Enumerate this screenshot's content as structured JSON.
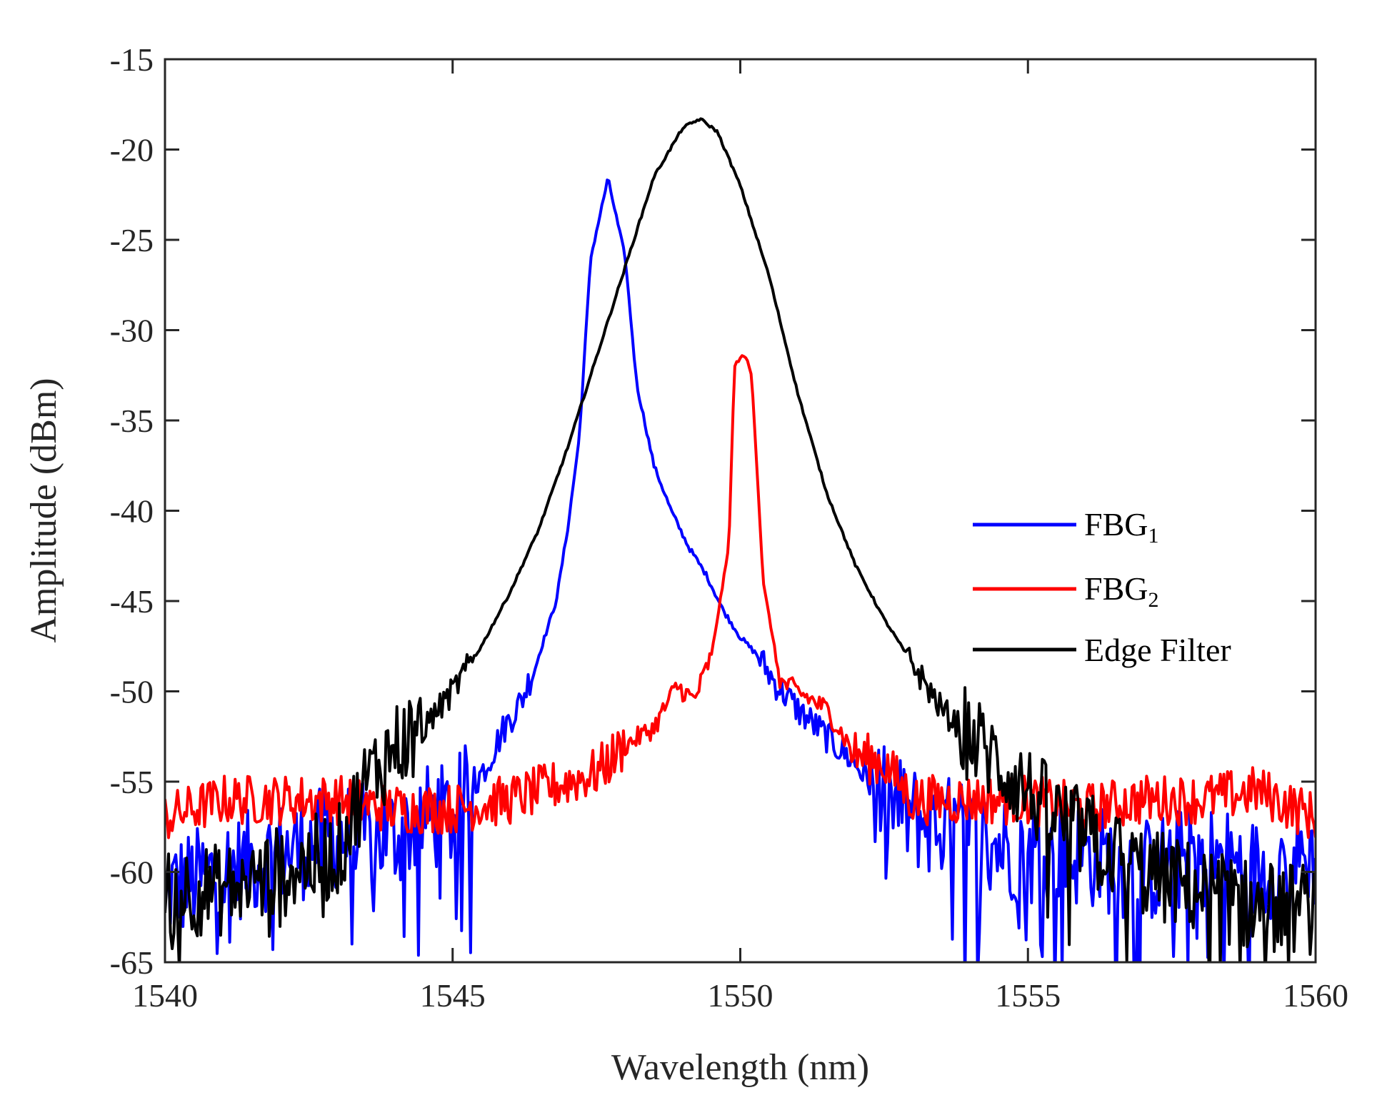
{
  "chart_data": {
    "type": "line",
    "title": "",
    "xlabel": "Wavelength (nm)",
    "ylabel": "Amplitude (dBm)",
    "xlim": [
      1540,
      1560
    ],
    "ylim": [
      -65,
      -15
    ],
    "xticks": [
      1540,
      1545,
      1550,
      1555,
      1560
    ],
    "yticks": [
      -15,
      -20,
      -25,
      -30,
      -35,
      -40,
      -45,
      -50,
      -55,
      -60,
      -65
    ],
    "grid": false,
    "legend_position": "right",
    "series": [
      {
        "name": "FBG1",
        "legend_main": "FBG",
        "legend_sub": "1",
        "color": "#0000ff",
        "x": [
          1540,
          1541,
          1542,
          1543,
          1544,
          1544.5,
          1545,
          1545.3,
          1545.6,
          1545.9,
          1546.2,
          1546.5,
          1546.8,
          1547.0,
          1547.2,
          1547.4,
          1547.7,
          1548.0,
          1548.2,
          1548.5,
          1548.8,
          1549.1,
          1549.4,
          1549.7,
          1550.0,
          1550.3,
          1550.6,
          1551.0,
          1551.5,
          1552.0,
          1552.5,
          1553,
          1554,
          1555,
          1556,
          1557,
          1558,
          1559,
          1560
        ],
        "y": [
          -61,
          -60,
          -59,
          -58,
          -58,
          -57,
          -57,
          -55.5,
          -54,
          -52,
          -50.5,
          -48,
          -45,
          -41,
          -36,
          -26,
          -21.6,
          -26,
          -33,
          -37.5,
          -40,
          -42,
          -43.5,
          -45.5,
          -47,
          -48,
          -49.5,
          -51,
          -52.5,
          -54,
          -56,
          -57,
          -58,
          -59,
          -59,
          -60,
          -59,
          -60,
          -59
        ]
      },
      {
        "name": "FBG2",
        "legend_main": "FBG",
        "legend_sub": "2",
        "color": "#ff0000",
        "x": [
          1540,
          1541,
          1542,
          1543,
          1544,
          1545,
          1546,
          1547,
          1547.5,
          1548.0,
          1548.5,
          1548.9,
          1549.2,
          1549.5,
          1549.8,
          1549.9,
          1550.0,
          1550.1,
          1550.2,
          1550.4,
          1550.7,
          1551.0,
          1551.5,
          1552.0,
          1552.5,
          1553,
          1554,
          1555,
          1556,
          1557,
          1558,
          1559,
          1560
        ],
        "y": [
          -57,
          -56,
          -56,
          -56,
          -56.5,
          -56.5,
          -56,
          -55,
          -54.5,
          -53,
          -52,
          -49.7,
          -50.5,
          -48,
          -42,
          -32,
          -31.5,
          -31.5,
          -32.5,
          -44,
          -49.5,
          -50,
          -51,
          -53.5,
          -54,
          -56,
          -56,
          -56,
          -56.5,
          -56,
          -56,
          -55.5,
          -57
        ]
      },
      {
        "name": "Edge Filter",
        "legend_main": "Edge Filter",
        "legend_sub": "",
        "color": "#000000",
        "x": [
          1540,
          1541,
          1542,
          1543,
          1543.5,
          1544,
          1544.5,
          1545,
          1545.5,
          1546,
          1546.5,
          1547,
          1547.5,
          1548,
          1548.5,
          1549,
          1549.3,
          1549.6,
          1550,
          1550.5,
          1551,
          1551.5,
          1552,
          1552.5,
          1553,
          1553.5,
          1554,
          1554.5,
          1555,
          1555.5,
          1556,
          1557,
          1558,
          1559,
          1560
        ],
        "y": [
          -61,
          -61,
          -60,
          -59,
          -55,
          -53,
          -52,
          -50,
          -47.5,
          -44.5,
          -41,
          -36.5,
          -31.5,
          -26.5,
          -21.5,
          -18.8,
          -18.3,
          -19,
          -22,
          -27,
          -33.5,
          -39,
          -43,
          -46,
          -48.5,
          -51,
          -52.5,
          -54,
          -55.5,
          -57,
          -58,
          -60,
          -61,
          -62,
          -62
        ]
      }
    ]
  }
}
